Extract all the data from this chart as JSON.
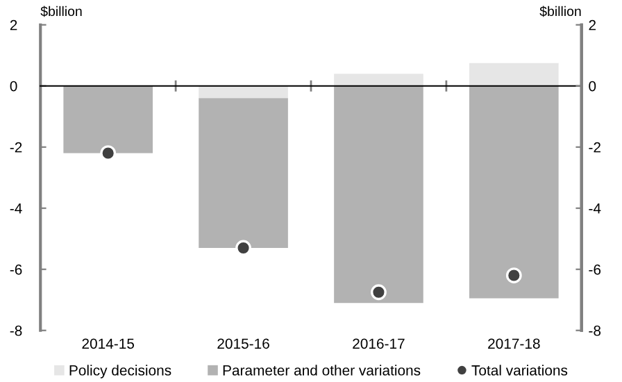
{
  "chart_data": {
    "type": "bar",
    "stacked": true,
    "categories": [
      "2014-15",
      "2015-16",
      "2016-17",
      "2017-18"
    ],
    "series": [
      {
        "name": "Policy decisions",
        "color": "#e6e6e6",
        "values": [
          0,
          -0.4,
          0.4,
          0.75
        ]
      },
      {
        "name": "Parameter and other variations",
        "color": "#b2b2b2",
        "values": [
          -2.2,
          -4.9,
          -7.1,
          -6.95
        ]
      },
      {
        "name": "Total variations",
        "type": "scatter",
        "color": "#404040",
        "marker": "circle",
        "values": [
          -2.2,
          -5.3,
          -6.75,
          -6.2
        ]
      }
    ],
    "ylabel": "$billion",
    "y2label": "$billion",
    "ylim": [
      -8,
      2
    ],
    "yticks": [
      -8,
      -6,
      -4,
      -2,
      0,
      2
    ],
    "y2lim": [
      -8,
      2
    ],
    "y2ticks": [
      -8,
      -6,
      -4,
      -2,
      0,
      2
    ],
    "legend": "bottom"
  }
}
